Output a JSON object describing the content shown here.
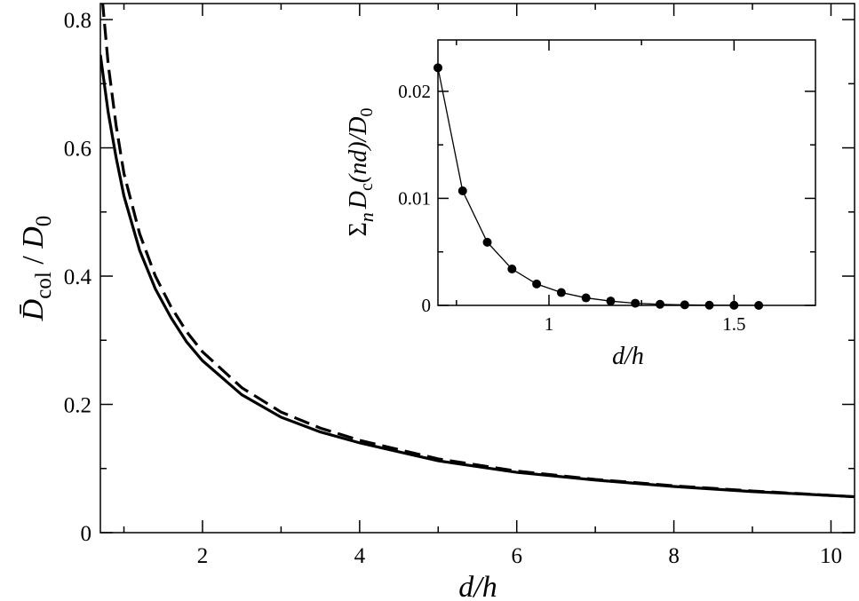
{
  "chart_data": [
    {
      "type": "line",
      "role": "main",
      "xlabel": "d/h",
      "ylabel": "D̄col / D0",
      "ylabel_parts": {
        "D": "D̄",
        "sub": "col",
        "slash": " / ",
        "D0": "D",
        "sub0": "0"
      },
      "xlim": [
        0.7,
        10.3
      ],
      "ylim": [
        0,
        0.825
      ],
      "x_ticks": [
        2,
        4,
        6,
        8,
        10
      ],
      "x_tick_labels": [
        "2",
        "4",
        "6",
        "8",
        "10"
      ],
      "x_minor_ticks": [
        1,
        3,
        5,
        7,
        9
      ],
      "y_ticks": [
        0,
        0.2,
        0.4,
        0.6,
        0.8
      ],
      "y_tick_labels": [
        "0",
        "0.2",
        "0.4",
        "0.6",
        "0.8"
      ],
      "y_minor_ticks": [
        0.1,
        0.3,
        0.5,
        0.7
      ],
      "series": [
        {
          "style": "solid",
          "color": "#000000",
          "x": [
            0.7,
            0.8,
            0.9,
            1.0,
            1.2,
            1.4,
            1.6,
            1.8,
            2.0,
            2.5,
            3.0,
            3.5,
            4.0,
            5.0,
            6.0,
            7.0,
            8.0,
            9.0,
            10.0,
            10.3
          ],
          "y": [
            0.745,
            0.655,
            0.585,
            0.525,
            0.44,
            0.38,
            0.335,
            0.297,
            0.268,
            0.215,
            0.18,
            0.157,
            0.14,
            0.112,
            0.094,
            0.082,
            0.072,
            0.064,
            0.058,
            0.056
          ]
        },
        {
          "style": "dashed",
          "color": "#000000",
          "x": [
            0.7,
            0.8,
            0.9,
            1.0,
            1.2,
            1.4,
            1.6,
            1.8,
            2.0,
            2.5,
            3.0,
            3.5,
            4.0,
            5.0,
            6.0,
            7.0,
            8.0,
            9.0,
            10.0,
            10.3
          ],
          "y": [
            0.865,
            0.73,
            0.635,
            0.56,
            0.466,
            0.4,
            0.352,
            0.313,
            0.282,
            0.226,
            0.188,
            0.163,
            0.144,
            0.115,
            0.096,
            0.083,
            0.073,
            0.065,
            0.058,
            0.056
          ]
        }
      ]
    },
    {
      "type": "line",
      "role": "inset",
      "xlabel": "d/h",
      "ylabel": "Σn Dc(nd)/D0",
      "ylabel_parts": {
        "sigma": "Σ",
        "n": "n",
        "D": "D",
        "c": "c",
        "rest": "(nd)/D",
        "zero": "0"
      },
      "xlim": [
        0.7,
        1.72
      ],
      "ylim": [
        0,
        0.0248
      ],
      "x_ticks": [
        1,
        1.5
      ],
      "x_tick_labels": [
        "1",
        "1.5"
      ],
      "x_minor_ticks": [
        0.75,
        1.25
      ],
      "y_ticks": [
        0,
        0.01,
        0.02
      ],
      "y_tick_labels": [
        "0",
        "0.01",
        "0.02"
      ],
      "y_minor_ticks": [
        0.005,
        0.015
      ],
      "series": [
        {
          "style": "solid-markers",
          "color": "#000000",
          "x": [
            0.7,
            0.7667,
            0.8333,
            0.9,
            0.9667,
            1.0333,
            1.1,
            1.1667,
            1.2333,
            1.3,
            1.3667,
            1.4333,
            1.5,
            1.5667
          ],
          "y": [
            0.0222,
            0.0107,
            0.0059,
            0.0034,
            0.002,
            0.0012,
            0.0007,
            0.0004,
            0.0002,
            0.0001,
            5e-05,
            2e-05,
            1e-05,
            0.0
          ]
        }
      ]
    }
  ]
}
